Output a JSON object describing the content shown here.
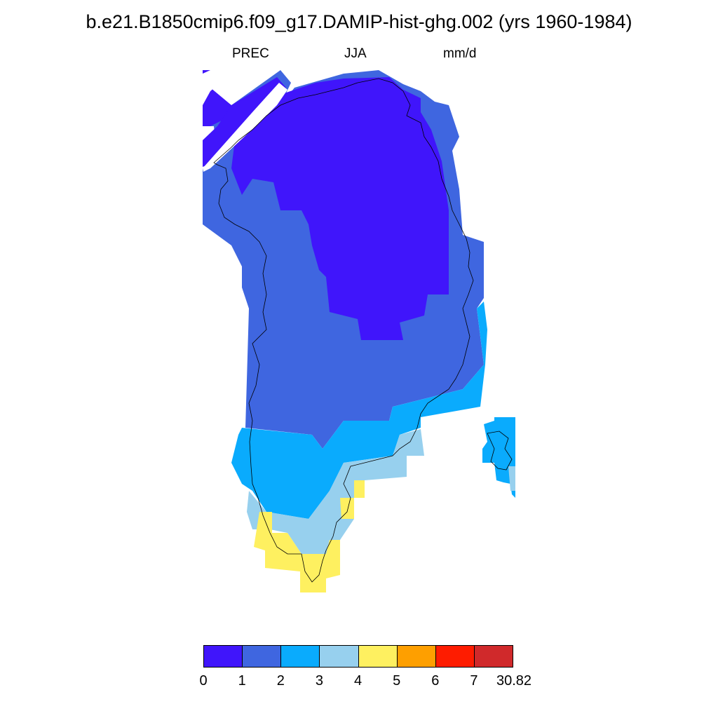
{
  "title": "b.e21.B1850cmip6.f09_g17.DAMIP-hist-ghg.002 (yrs 1960-1984)",
  "subtitle": {
    "variable": "PREC",
    "season": "JJA",
    "units": "mm/d"
  },
  "colorbar": {
    "colors": [
      "#4015fb",
      "#3f66e0",
      "#0aabfd",
      "#97d0ee",
      "#fef060",
      "#fe9f00",
      "#fe1c00",
      "#d0292b"
    ],
    "labels": [
      "0",
      "1",
      "2",
      "3",
      "4",
      "5",
      "6",
      "7",
      "30.82"
    ]
  },
  "map_regions": [
    "Greenland",
    "Iceland (partial)",
    "Ellesmere Island (partial)"
  ]
}
